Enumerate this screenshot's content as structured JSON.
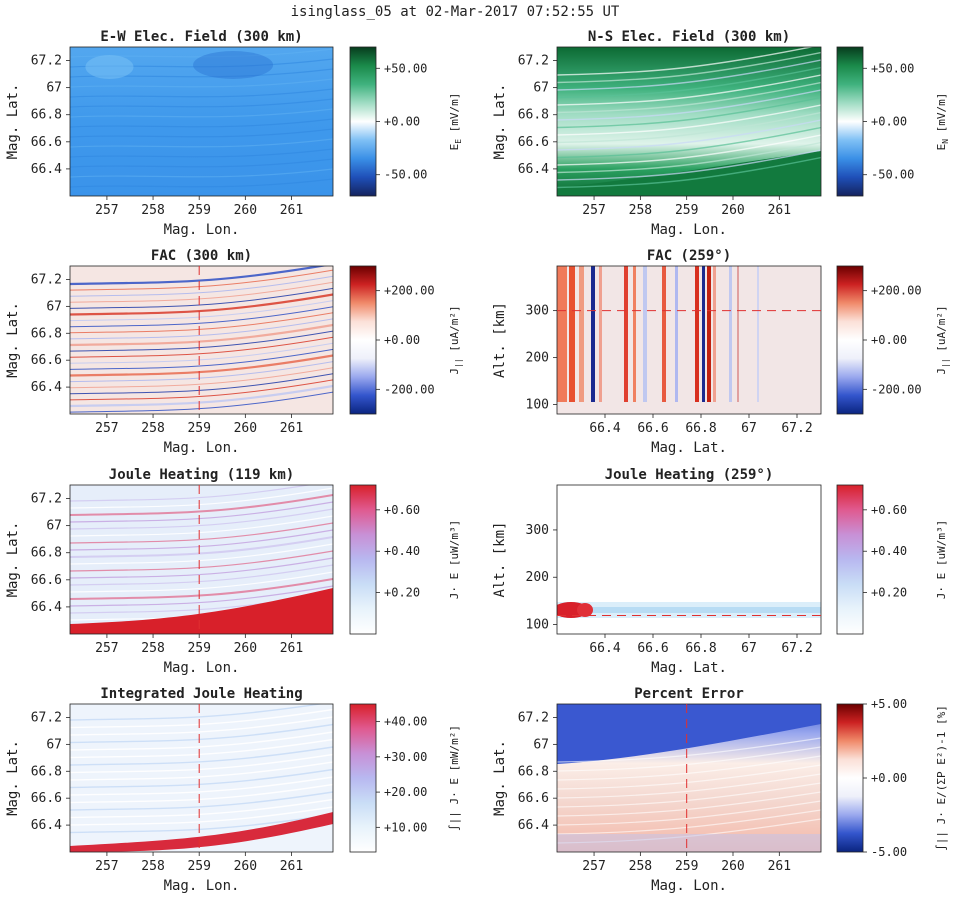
{
  "figure": {
    "title": "isinglass_05 at 02-Mar-2017 07:52:55 UT"
  },
  "colors": {
    "blue_cmap": [
      "#14235e",
      "#1f4fb8",
      "#3a8fe6",
      "#7fc0f5",
      "#ffffff",
      "#9fdcc3",
      "#3fb27e",
      "#1a8a4a",
      "#073c1e"
    ],
    "redblue_cmap": [
      "#0a2480",
      "#3355cc",
      "#9aa8ee",
      "#eef0fa",
      "#ffffff",
      "#fbe0d8",
      "#f08a6a",
      "#cc2222",
      "#6b0000"
    ],
    "heat_cmap": [
      "#ffffff",
      "#e8f3fb",
      "#c9ddf6",
      "#b8b8f0",
      "#c890d6",
      "#e05a90",
      "#d8202a"
    ],
    "dashed_line": "#e03030"
  },
  "chart_data": [
    {
      "id": "ew-field",
      "type": "heatmap",
      "title": "E-W Elec. Field (300 km)",
      "xlabel": "Mag. Lon.",
      "ylabel": "Mag. Lat.",
      "xticks": [
        "257",
        "258",
        "259",
        "260",
        "261"
      ],
      "yticks": [
        "66.4",
        "66.6",
        "66.8",
        "67",
        "67.2"
      ],
      "xlim": [
        256.2,
        261.9
      ],
      "ylim": [
        66.2,
        67.3
      ],
      "colorbar": {
        "ticks": [
          "+50.00",
          "+0.00",
          "-50.00"
        ],
        "tick_values": [
          50,
          0,
          -50
        ],
        "range": [
          -70,
          70
        ],
        "label": "E",
        "label_sub": "E",
        "unit": "[mV/m]",
        "cmap": "blue_cmap"
      }
    },
    {
      "id": "ns-field",
      "type": "heatmap",
      "title": "N-S Elec. Field (300 km)",
      "xlabel": "Mag. Lon.",
      "ylabel": "Mag. Lat.",
      "xticks": [
        "257",
        "258",
        "259",
        "260",
        "261"
      ],
      "yticks": [
        "66.4",
        "66.6",
        "66.8",
        "67",
        "67.2"
      ],
      "xlim": [
        256.2,
        261.9
      ],
      "ylim": [
        66.2,
        67.3
      ],
      "colorbar": {
        "ticks": [
          "+50.00",
          "+0.00",
          "-50.00"
        ],
        "tick_values": [
          50,
          0,
          -50
        ],
        "range": [
          -70,
          70
        ],
        "label": "E",
        "label_sub": "N",
        "unit": "[mV/m]",
        "cmap": "blue_cmap"
      }
    },
    {
      "id": "fac-300",
      "type": "heatmap",
      "title": "FAC (300 km)",
      "xlabel": "Mag. Lon.",
      "ylabel": "Mag. Lat.",
      "xticks": [
        "257",
        "258",
        "259",
        "260",
        "261"
      ],
      "yticks": [
        "66.4",
        "66.6",
        "66.8",
        "67",
        "67.2"
      ],
      "xlim": [
        256.2,
        261.9
      ],
      "ylim": [
        66.2,
        67.3
      ],
      "dashed_x": 259,
      "colorbar": {
        "ticks": [
          "+200.00",
          "+0.00",
          "-200.00"
        ],
        "tick_values": [
          200,
          0,
          -200
        ],
        "range": [
          -300,
          300
        ],
        "label": "J",
        "label_sub": "||",
        "unit": "[uA/m²]",
        "cmap": "redblue_cmap"
      }
    },
    {
      "id": "fac-259",
      "type": "heatmap",
      "title": "FAC (259°)",
      "xlabel": "Mag. Lat.",
      "ylabel": "Alt. [km]",
      "xticks": [
        "66.4",
        "66.6",
        "66.8",
        "67",
        "67.2"
      ],
      "yticks": [
        "100",
        "200",
        "300"
      ],
      "xlim": [
        66.2,
        67.3
      ],
      "ylim": [
        80,
        395
      ],
      "dashed_y": 300,
      "colorbar": {
        "ticks": [
          "+200.00",
          "+0.00",
          "-200.00"
        ],
        "tick_values": [
          200,
          0,
          -200
        ],
        "range": [
          -300,
          300
        ],
        "label": "J",
        "label_sub": "||",
        "unit": "[uA/m²]",
        "cmap": "redblue_cmap"
      }
    },
    {
      "id": "jh-119",
      "type": "heatmap",
      "title": "Joule Heating (119 km)",
      "xlabel": "Mag. Lon.",
      "ylabel": "Mag. Lat.",
      "xticks": [
        "257",
        "258",
        "259",
        "260",
        "261"
      ],
      "yticks": [
        "66.4",
        "66.6",
        "66.8",
        "67",
        "67.2"
      ],
      "xlim": [
        256.2,
        261.9
      ],
      "ylim": [
        66.2,
        67.3
      ],
      "dashed_x": 259,
      "colorbar": {
        "ticks": [
          "+0.60",
          "+0.40",
          "+0.20"
        ],
        "tick_values": [
          0.6,
          0.4,
          0.2
        ],
        "range": [
          0,
          0.72
        ],
        "label": "J· E",
        "label_sub": "",
        "unit": "[uW/m³]",
        "cmap": "heat_cmap"
      }
    },
    {
      "id": "jh-259",
      "type": "heatmap",
      "title": "Joule Heating (259°)",
      "xlabel": "Mag. Lat.",
      "ylabel": "Alt. [km]",
      "xticks": [
        "66.4",
        "66.6",
        "66.8",
        "67",
        "67.2"
      ],
      "yticks": [
        "100",
        "200",
        "300"
      ],
      "xlim": [
        66.2,
        67.3
      ],
      "ylim": [
        80,
        395
      ],
      "dashed_y": 119,
      "colorbar": {
        "ticks": [
          "+0.60",
          "+0.40",
          "+0.20"
        ],
        "tick_values": [
          0.6,
          0.4,
          0.2
        ],
        "range": [
          0,
          0.72
        ],
        "label": "J· E",
        "label_sub": "",
        "unit": "[uW/m³]",
        "cmap": "heat_cmap"
      }
    },
    {
      "id": "int-jh",
      "type": "heatmap",
      "title": "Integrated Joule Heating",
      "xlabel": "Mag. Lon.",
      "ylabel": "Mag. Lat.",
      "xticks": [
        "257",
        "258",
        "259",
        "260",
        "261"
      ],
      "yticks": [
        "66.4",
        "66.6",
        "66.8",
        "67",
        "67.2"
      ],
      "xlim": [
        256.2,
        261.9
      ],
      "ylim": [
        66.2,
        67.3
      ],
      "dashed_x": 259,
      "colorbar": {
        "ticks": [
          "+40.00",
          "+30.00",
          "+20.00",
          "+10.00"
        ],
        "tick_values": [
          40,
          30,
          20,
          10
        ],
        "range": [
          3,
          45
        ],
        "label": "∫|| J· E",
        "label_sub": "",
        "unit": "[mW/m²]",
        "cmap": "heat_cmap"
      }
    },
    {
      "id": "pct-err",
      "type": "heatmap",
      "title": "Percent Error",
      "xlabel": "Mag. Lon.",
      "ylabel": "Mag. Lat.",
      "xticks": [
        "257",
        "258",
        "259",
        "260",
        "261"
      ],
      "yticks": [
        "66.4",
        "66.6",
        "66.8",
        "67",
        "67.2"
      ],
      "xlim": [
        256.2,
        261.9
      ],
      "ylim": [
        66.2,
        67.3
      ],
      "dashed_x": 259,
      "colorbar": {
        "ticks": [
          "+5.00",
          "+0.00",
          "-5.00"
        ],
        "tick_values": [
          5,
          0,
          -5
        ],
        "range": [
          -5,
          5
        ],
        "label": "∫|| J· E/(ΣP E²)-1",
        "label_sub": "",
        "unit": "[%]",
        "cmap": "redblue_cmap"
      }
    }
  ]
}
